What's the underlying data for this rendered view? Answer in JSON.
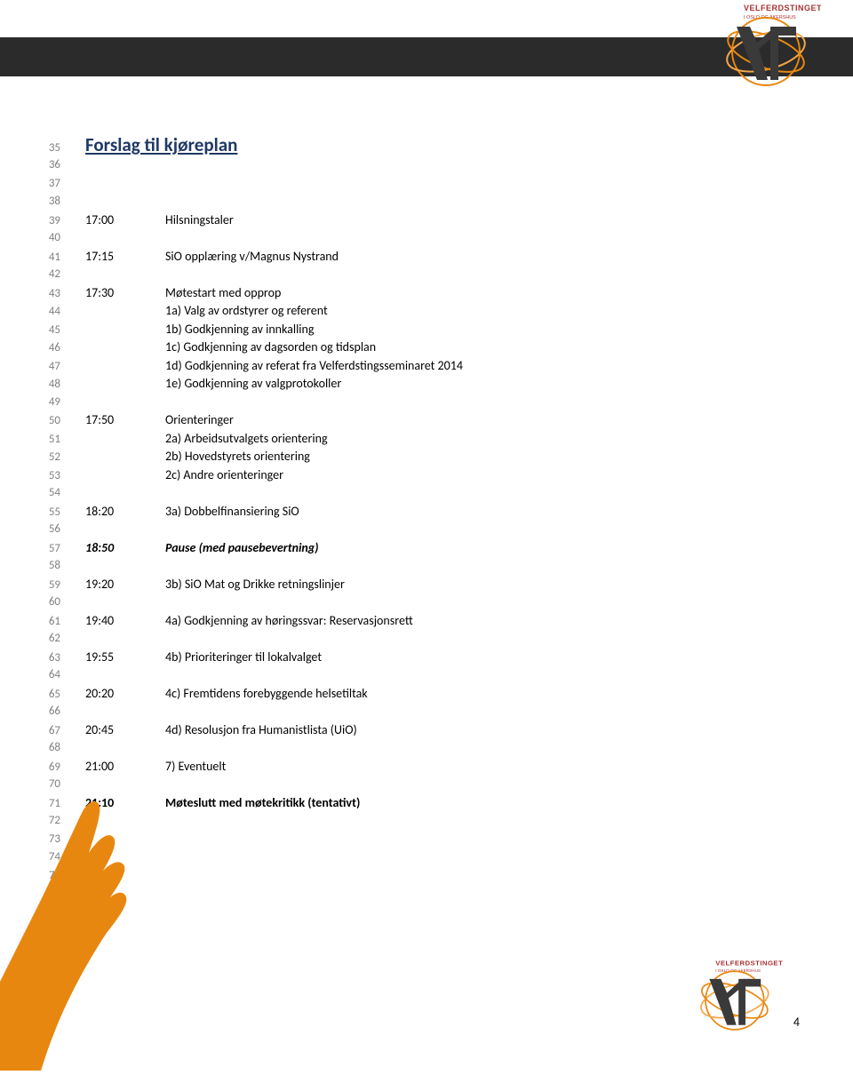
{
  "colors": {
    "header_bar": "#2b2b2b",
    "title_color": "#1f3864",
    "lineno_color": "#808080",
    "logo_orange": "#e8870f",
    "logo_orange_light": "#f4a64a",
    "logo_dark": "#3a3a3a",
    "logo_text_red": "#a83232",
    "arm_orange": "#e8870f"
  },
  "logo": {
    "brand_top": "VELFERDSTINGET",
    "brand_sub": "I OSLO OG AKERSHUS"
  },
  "title": "Forslag til kjøreplan",
  "page_number": "4",
  "lines": [
    {
      "n": 35,
      "type": "title"
    },
    {
      "n": 36,
      "type": "blank"
    },
    {
      "n": 37,
      "type": "blank"
    },
    {
      "n": 38,
      "type": "blank"
    },
    {
      "n": 39,
      "type": "row",
      "time": "17:00",
      "text": "Hilsningstaler"
    },
    {
      "n": 40,
      "type": "blank"
    },
    {
      "n": 41,
      "type": "row",
      "time": "17:15",
      "text": "SiO opplæring v/Magnus Nystrand"
    },
    {
      "n": 42,
      "type": "blank"
    },
    {
      "n": 43,
      "type": "row",
      "time": "17:30",
      "text": "Møtestart med opprop"
    },
    {
      "n": 44,
      "type": "sub",
      "text": "1a) Valg av ordstyrer og referent"
    },
    {
      "n": 45,
      "type": "sub",
      "text": "1b) Godkjenning av innkalling"
    },
    {
      "n": 46,
      "type": "sub",
      "text": "1c) Godkjenning av dagsorden og tidsplan"
    },
    {
      "n": 47,
      "type": "sub",
      "text": "1d) Godkjenning av referat fra Velferdstingsseminaret 2014"
    },
    {
      "n": 48,
      "type": "sub",
      "text": "1e) Godkjenning av valgprotokoller"
    },
    {
      "n": 49,
      "type": "blank"
    },
    {
      "n": 50,
      "type": "row",
      "time": "17:50",
      "text": "Orienteringer"
    },
    {
      "n": 51,
      "type": "sub",
      "text": "2a) Arbeidsutvalgets orientering"
    },
    {
      "n": 52,
      "type": "sub",
      "text": "2b) Hovedstyrets orientering"
    },
    {
      "n": 53,
      "type": "sub",
      "text": "2c) Andre orienteringer"
    },
    {
      "n": 54,
      "type": "blank"
    },
    {
      "n": 55,
      "type": "row",
      "time": "18:20",
      "text": "3a) Dobbelfinansiering SiO"
    },
    {
      "n": 56,
      "type": "blank"
    },
    {
      "n": 57,
      "type": "row_italic",
      "time": "18:50",
      "text": "Pause (med pausebevertning)"
    },
    {
      "n": 58,
      "type": "blank"
    },
    {
      "n": 59,
      "type": "row",
      "time": "19:20",
      "text": "3b) SiO Mat og Drikke retningslinjer"
    },
    {
      "n": 60,
      "type": "blank"
    },
    {
      "n": 61,
      "type": "row",
      "time": "19:40",
      "text": "4a) Godkjenning av høringssvar: Reservasjonsrett"
    },
    {
      "n": 62,
      "type": "blank"
    },
    {
      "n": 63,
      "type": "row",
      "time": "19:55",
      "text": "4b) Prioriteringer til lokalvalget"
    },
    {
      "n": 64,
      "type": "blank"
    },
    {
      "n": 65,
      "type": "row",
      "time": "20:20",
      "text": "4c) Fremtidens forebyggende helsetiltak"
    },
    {
      "n": 66,
      "type": "blank"
    },
    {
      "n": 67,
      "type": "row",
      "time": "20:45",
      "text": "4d) Resolusjon fra Humanistlista (UiO)"
    },
    {
      "n": 68,
      "type": "blank"
    },
    {
      "n": 69,
      "type": "row",
      "time": "21:00",
      "text": "7) Eventuelt"
    },
    {
      "n": 70,
      "type": "blank"
    },
    {
      "n": 71,
      "type": "row_bold",
      "time": "21:10",
      "text": "Møteslutt med møtekritikk (tentativt)"
    },
    {
      "n": 72,
      "type": "blank"
    },
    {
      "n": 73,
      "type": "blank"
    },
    {
      "n": 74,
      "type": "blank"
    },
    {
      "n": 75,
      "type": "blank"
    }
  ]
}
